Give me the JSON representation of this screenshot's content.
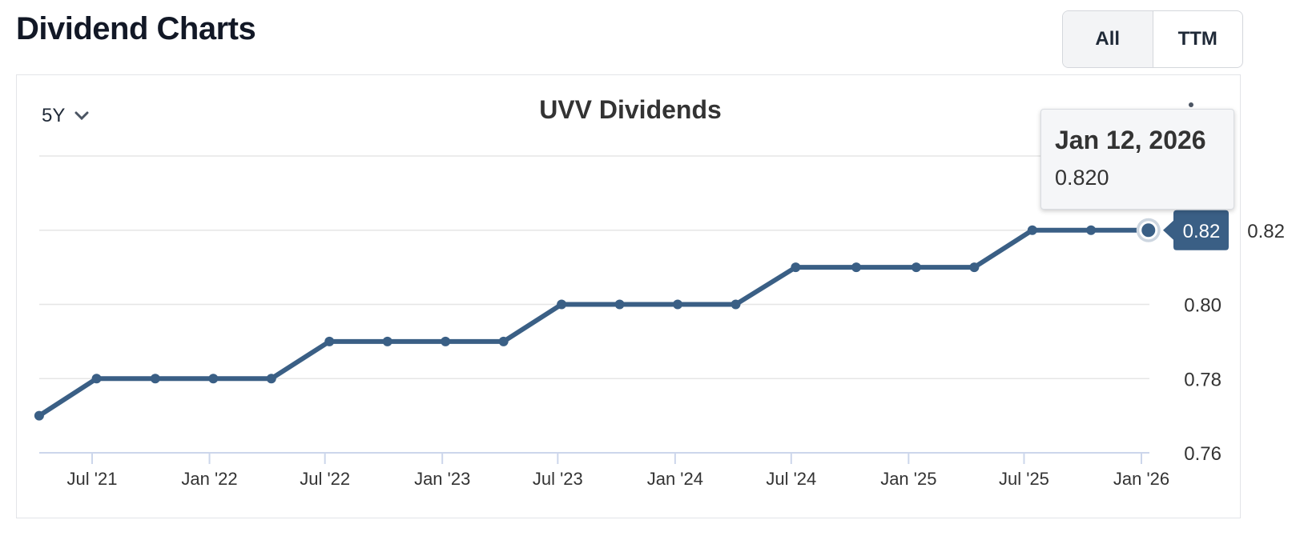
{
  "header": {
    "title": "Dividend Charts",
    "toggle": [
      {
        "label": "All",
        "active": true
      },
      {
        "label": "TTM",
        "active": false
      }
    ]
  },
  "range_select": {
    "value": "5Y"
  },
  "tooltip": {
    "date": "Jan 12, 2026",
    "value": "0.820"
  },
  "colors": {
    "line": "#3a5f85",
    "grid": "#e6e6e6"
  },
  "chart_data": {
    "type": "line",
    "title": "UVV Dividends",
    "x": [
      "2021-04-09",
      "2021-07-08",
      "2021-10-08",
      "2022-01-07",
      "2022-04-08",
      "2022-07-08",
      "2022-10-07",
      "2023-01-06",
      "2023-04-07",
      "2023-07-07",
      "2023-10-06",
      "2024-01-05",
      "2024-04-05",
      "2024-07-08",
      "2024-10-11",
      "2025-01-13",
      "2025-04-14",
      "2025-07-14",
      "2025-10-14",
      "2026-01-12"
    ],
    "series": [
      {
        "values": [
          0.77,
          0.78,
          0.78,
          0.78,
          0.78,
          0.79,
          0.79,
          0.79,
          0.79,
          0.8,
          0.8,
          0.8,
          0.8,
          0.81,
          0.81,
          0.81,
          0.81,
          0.82,
          0.82,
          0.82
        ]
      }
    ],
    "xticks": [
      {
        "date": "2021-07-01",
        "label": "Jul '21"
      },
      {
        "date": "2022-01-01",
        "label": "Jan '22"
      },
      {
        "date": "2022-07-01",
        "label": "Jul '22"
      },
      {
        "date": "2023-01-01",
        "label": "Jan '23"
      },
      {
        "date": "2023-07-01",
        "label": "Jul '23"
      },
      {
        "date": "2024-01-01",
        "label": "Jan '24"
      },
      {
        "date": "2024-07-01",
        "label": "Jul '24"
      },
      {
        "date": "2025-01-01",
        "label": "Jan '25"
      },
      {
        "date": "2025-07-01",
        "label": "Jul '25"
      },
      {
        "date": "2026-01-01",
        "label": "Jan '26"
      }
    ],
    "yticks": [
      {
        "value": 0.76,
        "label": "0.76"
      },
      {
        "value": 0.78,
        "label": "0.78"
      },
      {
        "value": 0.8,
        "label": "0.80"
      },
      {
        "value": 0.82,
        "label": "0.82"
      },
      {
        "value": 0.84,
        "label": ""
      }
    ],
    "ylim": [
      0.76,
      0.84
    ],
    "last_value_label": "0.82",
    "grid": true
  }
}
